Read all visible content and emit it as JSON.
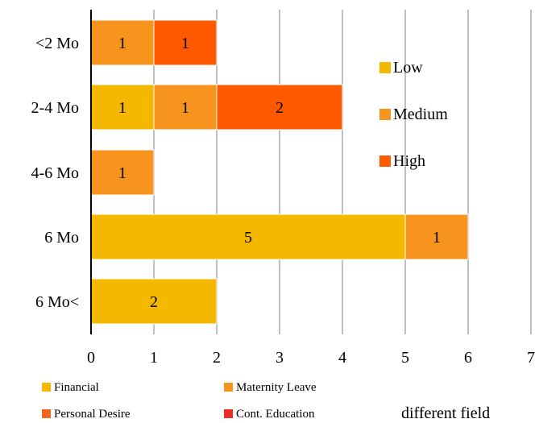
{
  "chart_data": {
    "type": "bar",
    "orientation": "horizontal",
    "stacked": true,
    "categories": [
      "<2 Mo",
      "2-4 Mo",
      "4-6 Mo",
      "6 Mo",
      "6 Mo<"
    ],
    "series": [
      {
        "name": "Low",
        "color": "#F5B800",
        "values": [
          0,
          1,
          0,
          5,
          2
        ]
      },
      {
        "name": "Medium",
        "color": "#F7941D",
        "values": [
          1,
          1,
          1,
          1,
          0
        ]
      },
      {
        "name": "High",
        "color": "#FF5A00",
        "values": [
          1,
          2,
          0,
          0,
          0
        ]
      }
    ],
    "xlim": [
      0,
      7
    ],
    "x_ticks": [
      "0",
      "1",
      "2",
      "3",
      "4",
      "5",
      "6",
      "7"
    ],
    "grid": "vertical",
    "legend_position": "right",
    "secondary_legend": [
      {
        "label": "Financial",
        "color": "#F5B800"
      },
      {
        "label": "Maternity Leave",
        "color": "#F7941D"
      },
      {
        "label": "Personal Desire",
        "color": "#F26522"
      },
      {
        "label": "Cont. Education",
        "color": "#EE2D24"
      }
    ],
    "cut_off_text": "different field"
  }
}
